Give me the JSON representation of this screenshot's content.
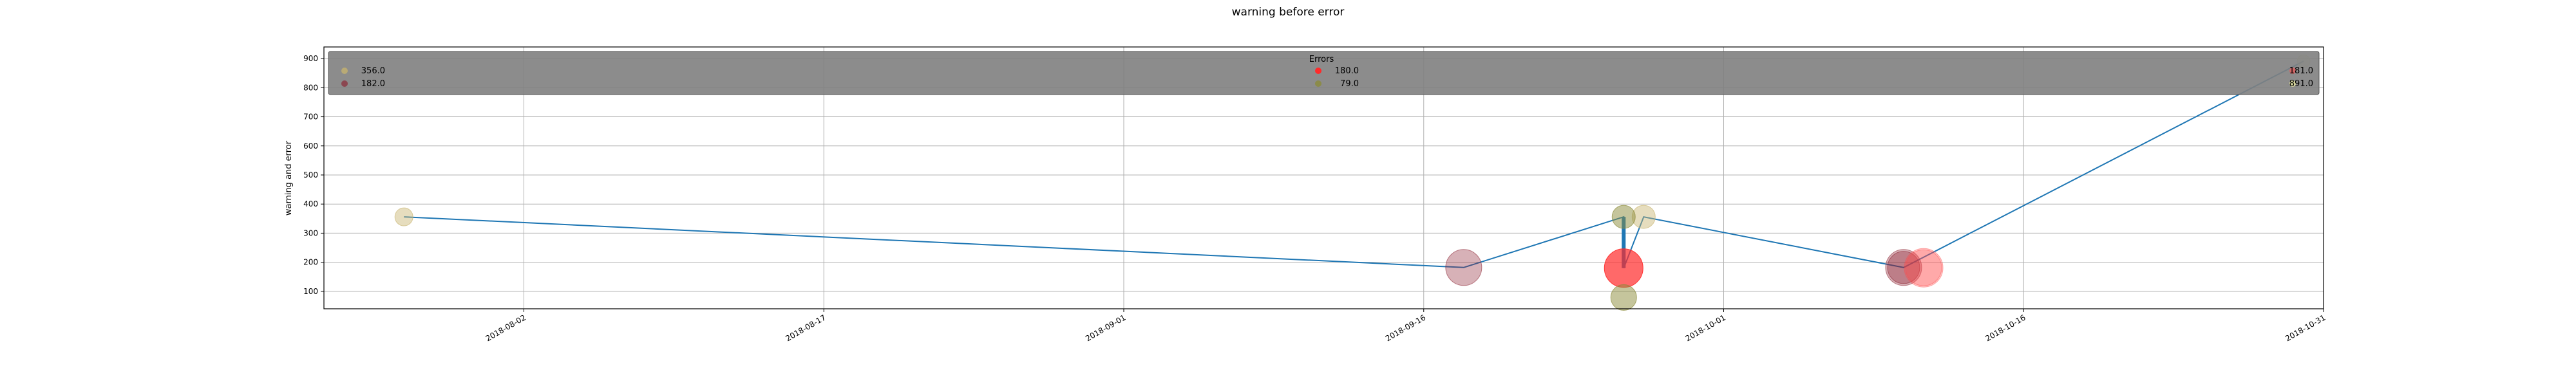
{
  "chart_data": {
    "type": "scatter",
    "title": "warning before error",
    "xlabel": "",
    "ylabel": "warning and error",
    "xlim": [
      "2018-07-23",
      "2018-10-31"
    ],
    "ylim": [
      40,
      940
    ],
    "grid": true,
    "x_ticks": [
      "2018-08-02",
      "2018-08-17",
      "2018-09-01",
      "2018-09-16",
      "2018-10-01",
      "2018-10-16",
      "2018-10-31"
    ],
    "y_ticks": [
      100,
      200,
      300,
      400,
      500,
      600,
      700,
      800,
      900
    ],
    "line": {
      "color": "#1f77b4",
      "points": [
        {
          "x": "2018-07-27",
          "y": 356
        },
        {
          "x": "2018-09-18",
          "y": 182
        },
        {
          "x": "2018-09-26",
          "y": 356
        },
        {
          "x": "2018-09-26",
          "y": 180
        },
        {
          "x": "2018-09-27",
          "y": 356
        },
        {
          "x": "2018-10-10",
          "y": 182
        },
        {
          "x": "2018-10-30",
          "y": 891
        }
      ]
    },
    "series": [
      {
        "name": "356.0",
        "color": "#c8b46e",
        "opacity": 0.45,
        "points": [
          {
            "x": "2018-07-27",
            "y": 356,
            "size": 14
          },
          {
            "x": "2018-09-27",
            "y": 356,
            "size": 18
          }
        ]
      },
      {
        "name": "182.0",
        "color": "#8b2030",
        "opacity": 0.35,
        "points": [
          {
            "x": "2018-09-18",
            "y": 182,
            "size": 28
          },
          {
            "x": "2018-10-10",
            "y": 182,
            "size": 28
          },
          {
            "x": "2018-10-10",
            "y": 182,
            "size": 25
          }
        ]
      },
      {
        "name": "180.0",
        "color": "#ff2a2a",
        "opacity": 0.7,
        "points": [
          {
            "x": "2018-09-26",
            "y": 180,
            "size": 30
          }
        ]
      },
      {
        "name": "79.0",
        "color": "#8b8b3a",
        "opacity": 0.5,
        "points": [
          {
            "x": "2018-09-26",
            "y": 79,
            "size": 20
          },
          {
            "x": "2018-09-26",
            "y": 356,
            "size": 18
          }
        ]
      },
      {
        "name": "181.0",
        "color": "#ff4a4a",
        "opacity": 0.28,
        "points": [
          {
            "x": "2018-10-11",
            "y": 181,
            "size": 30
          },
          {
            "x": "2018-10-11",
            "y": 181,
            "size": 28
          }
        ]
      },
      {
        "name": "891.0",
        "color": "#e6e6a0",
        "opacity": 0.5,
        "points": [
          {
            "x": "2018-10-30",
            "y": 891,
            "size": 10
          }
        ]
      }
    ],
    "legend": {
      "title": "Errors",
      "placement": "top",
      "background": "#808080"
    }
  }
}
